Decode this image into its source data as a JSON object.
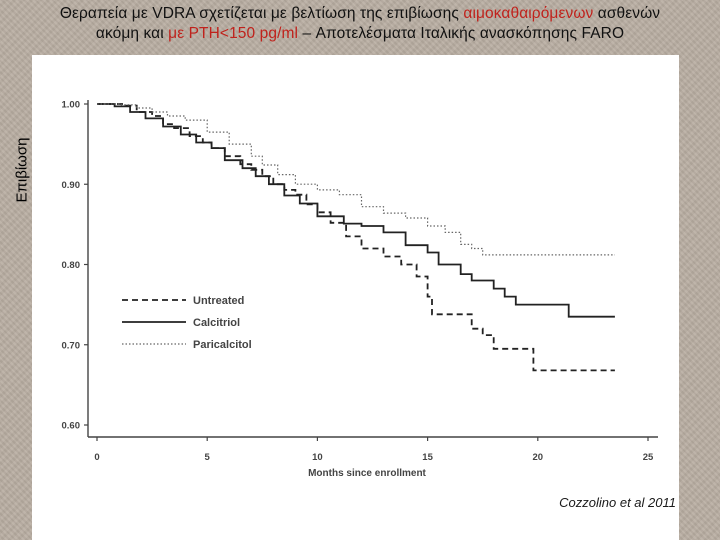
{
  "title": {
    "line1_prefix": "Θεραπεία με VDRA σχετίζεται με βελτίωση της επιβίωσης ",
    "line1_highlight": "αιμοκαθαιρόμενων",
    "line1_suffix": " ασθενών",
    "line2_prefix": "ακόμη και ",
    "line2_highlight": "με PTH<150 pg/ml",
    "line2_suffix": " – Αποτελέσματα Ιταλικής ανασκόπησης FARO"
  },
  "citation": "Cozzolino et al 2011",
  "chart_data": {
    "type": "line",
    "ylabel": "Επιβίωση",
    "xlabel": "Months since enrollment",
    "xlim": [
      0,
      25
    ],
    "ylim": [
      0.6,
      1.0
    ],
    "x_ticks": [
      0,
      5,
      10,
      15,
      20,
      25
    ],
    "x_tick_labels": [
      "0",
      "5",
      "10",
      "15",
      "20",
      "25"
    ],
    "y_ticks": [
      0.6,
      0.7,
      0.8,
      0.9,
      1.0
    ],
    "y_tick_labels": [
      "0.60",
      "0.70",
      "0.80",
      "0.90",
      "1.00"
    ],
    "legend_position": "bottom-left",
    "series": [
      {
        "name": "Untreated",
        "style": "dashed",
        "color": "#222222",
        "points": [
          [
            0,
            1.0
          ],
          [
            0.5,
            1.0
          ],
          [
            1.2,
            0.998
          ],
          [
            1.8,
            0.99
          ],
          [
            2.5,
            0.985
          ],
          [
            3,
            0.975
          ],
          [
            3.5,
            0.97
          ],
          [
            4.2,
            0.96
          ],
          [
            4.8,
            0.952
          ],
          [
            5.2,
            0.945
          ],
          [
            5.8,
            0.935
          ],
          [
            6.5,
            0.925
          ],
          [
            7,
            0.918
          ],
          [
            7.5,
            0.91
          ],
          [
            8,
            0.9
          ],
          [
            8.5,
            0.893
          ],
          [
            9,
            0.887
          ],
          [
            9.5,
            0.875
          ],
          [
            10,
            0.865
          ],
          [
            10.6,
            0.852
          ],
          [
            11.3,
            0.835
          ],
          [
            12,
            0.82
          ],
          [
            13,
            0.81
          ],
          [
            13.8,
            0.8
          ],
          [
            14.5,
            0.785
          ],
          [
            15,
            0.76
          ],
          [
            15.2,
            0.738
          ],
          [
            16.5,
            0.738
          ],
          [
            17,
            0.72
          ],
          [
            17.5,
            0.712
          ],
          [
            18,
            0.695
          ],
          [
            19.5,
            0.695
          ],
          [
            19.8,
            0.668
          ],
          [
            23.5,
            0.668
          ]
        ]
      },
      {
        "name": "Calcitriol",
        "style": "solid",
        "color": "#222222",
        "points": [
          [
            0,
            1.0
          ],
          [
            0.8,
            0.997
          ],
          [
            1.5,
            0.99
          ],
          [
            2.2,
            0.982
          ],
          [
            3,
            0.972
          ],
          [
            3.8,
            0.962
          ],
          [
            4.5,
            0.952
          ],
          [
            5.2,
            0.945
          ],
          [
            5.8,
            0.93
          ],
          [
            6.6,
            0.92
          ],
          [
            7.2,
            0.91
          ],
          [
            7.8,
            0.9
          ],
          [
            8.5,
            0.886
          ],
          [
            9.2,
            0.876
          ],
          [
            10,
            0.86
          ],
          [
            11.2,
            0.851
          ],
          [
            12,
            0.848
          ],
          [
            13,
            0.84
          ],
          [
            14,
            0.824
          ],
          [
            15,
            0.815
          ],
          [
            15.5,
            0.8
          ],
          [
            16.5,
            0.788
          ],
          [
            17,
            0.78
          ],
          [
            18,
            0.77
          ],
          [
            18.5,
            0.76
          ],
          [
            19,
            0.75
          ],
          [
            21.3,
            0.75
          ],
          [
            21.4,
            0.735
          ],
          [
            23.5,
            0.735
          ]
        ]
      },
      {
        "name": "Paricalcitol",
        "style": "dotted",
        "color": "#666666",
        "points": [
          [
            0,
            1.0
          ],
          [
            1,
            0.999
          ],
          [
            1.8,
            0.995
          ],
          [
            2.5,
            0.99
          ],
          [
            3.2,
            0.985
          ],
          [
            4,
            0.98
          ],
          [
            5,
            0.965
          ],
          [
            6,
            0.95
          ],
          [
            7,
            0.935
          ],
          [
            7.5,
            0.924
          ],
          [
            8.2,
            0.912
          ],
          [
            9,
            0.9
          ],
          [
            10,
            0.893
          ],
          [
            11,
            0.887
          ],
          [
            12,
            0.872
          ],
          [
            13,
            0.864
          ],
          [
            14,
            0.858
          ],
          [
            15,
            0.848
          ],
          [
            15.8,
            0.84
          ],
          [
            16.5,
            0.825
          ],
          [
            17,
            0.82
          ],
          [
            17.5,
            0.812
          ],
          [
            19,
            0.812
          ],
          [
            23.5,
            0.812
          ]
        ]
      }
    ]
  }
}
